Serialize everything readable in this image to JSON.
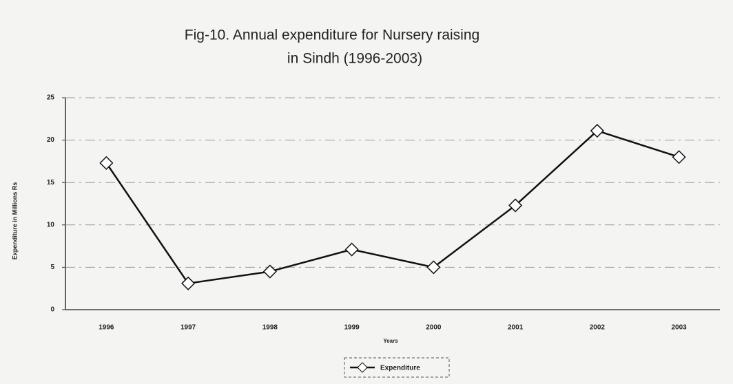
{
  "chart_data": {
    "type": "line",
    "title": [
      "Fig-10. Annual expenditure for Nursery raising",
      "in Sindh (1996-2003)"
    ],
    "x_label": "Years",
    "y_label": "Expenditure in Millions Rs",
    "categories": [
      "1996",
      "1997",
      "1998",
      "1999",
      "2000",
      "2001",
      "2002",
      "2003"
    ],
    "series": [
      {
        "name": "Expenditure",
        "color": "#111111",
        "values": [
          17.3,
          3.1,
          4.5,
          7.1,
          5.0,
          12.3,
          21.1,
          18.0
        ]
      }
    ],
    "ylim": [
      0,
      25
    ],
    "yticks": [
      0,
      5,
      10,
      15,
      20,
      25
    ],
    "grid": true,
    "legend": "bottom"
  }
}
